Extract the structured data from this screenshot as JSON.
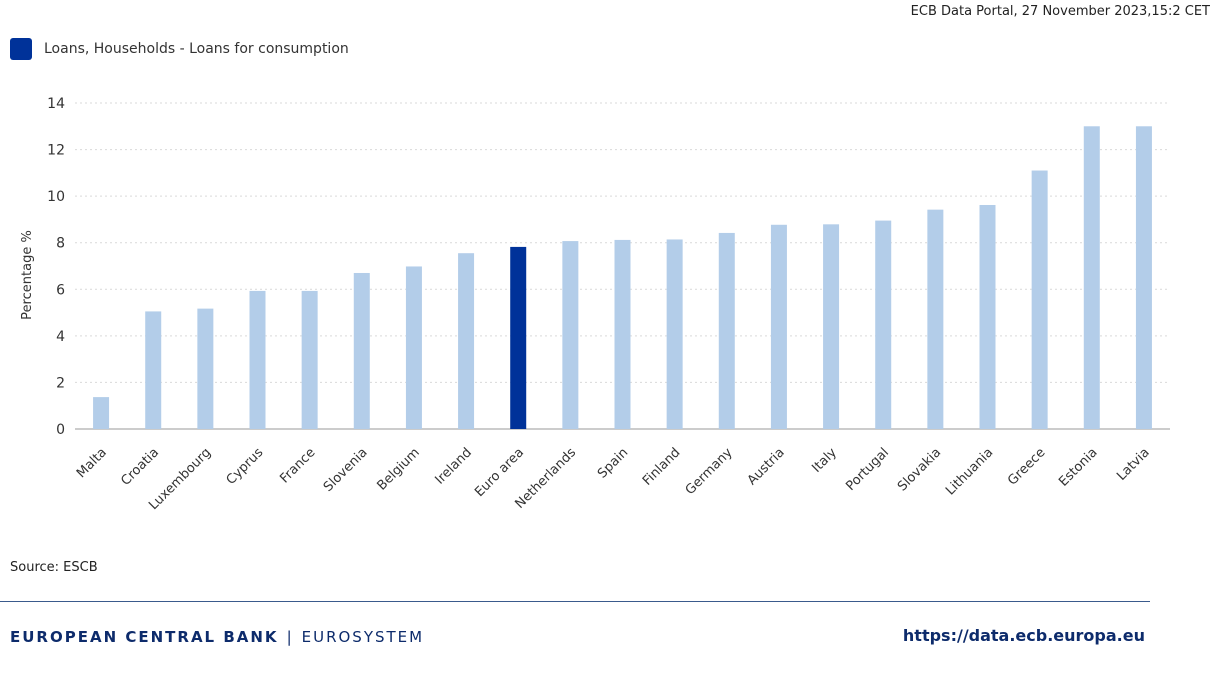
{
  "header": {
    "stamp": "ECB Data Portal, 27 November 2023,15:2 CET"
  },
  "legend": {
    "label": "Loans, Households - Loans for consumption",
    "color": "#003299"
  },
  "source": "Source: ESCB",
  "footer": {
    "brand_bold": "EUROPEAN CENTRAL BANK",
    "brand_sep": "|",
    "brand_light": "EUROSYSTEM",
    "url": "https://data.ecb.europa.eu"
  },
  "chart_data": {
    "type": "bar",
    "ylabel": "Percentage %",
    "ylim": [
      0,
      14
    ],
    "yticks": [
      0,
      2,
      4,
      6,
      8,
      10,
      12,
      14
    ],
    "grid": true,
    "categories": [
      "Malta",
      "Croatia",
      "Luxembourg",
      "Cyprus",
      "France",
      "Slovenia",
      "Belgium",
      "Ireland",
      "Euro area",
      "Netherlands",
      "Spain",
      "Finland",
      "Germany",
      "Austria",
      "Italy",
      "Portugal",
      "Slovakia",
      "Lithuania",
      "Greece",
      "Estonia",
      "Latvia"
    ],
    "values": [
      1.37,
      5.05,
      5.17,
      5.93,
      5.93,
      6.7,
      6.98,
      7.55,
      7.82,
      8.07,
      8.12,
      8.14,
      8.42,
      8.77,
      8.79,
      8.95,
      9.42,
      9.62,
      11.1,
      13.0,
      13.0
    ],
    "highlight": "Euro area",
    "bar_color": "#b3cde9",
    "highlight_color": "#003299"
  }
}
